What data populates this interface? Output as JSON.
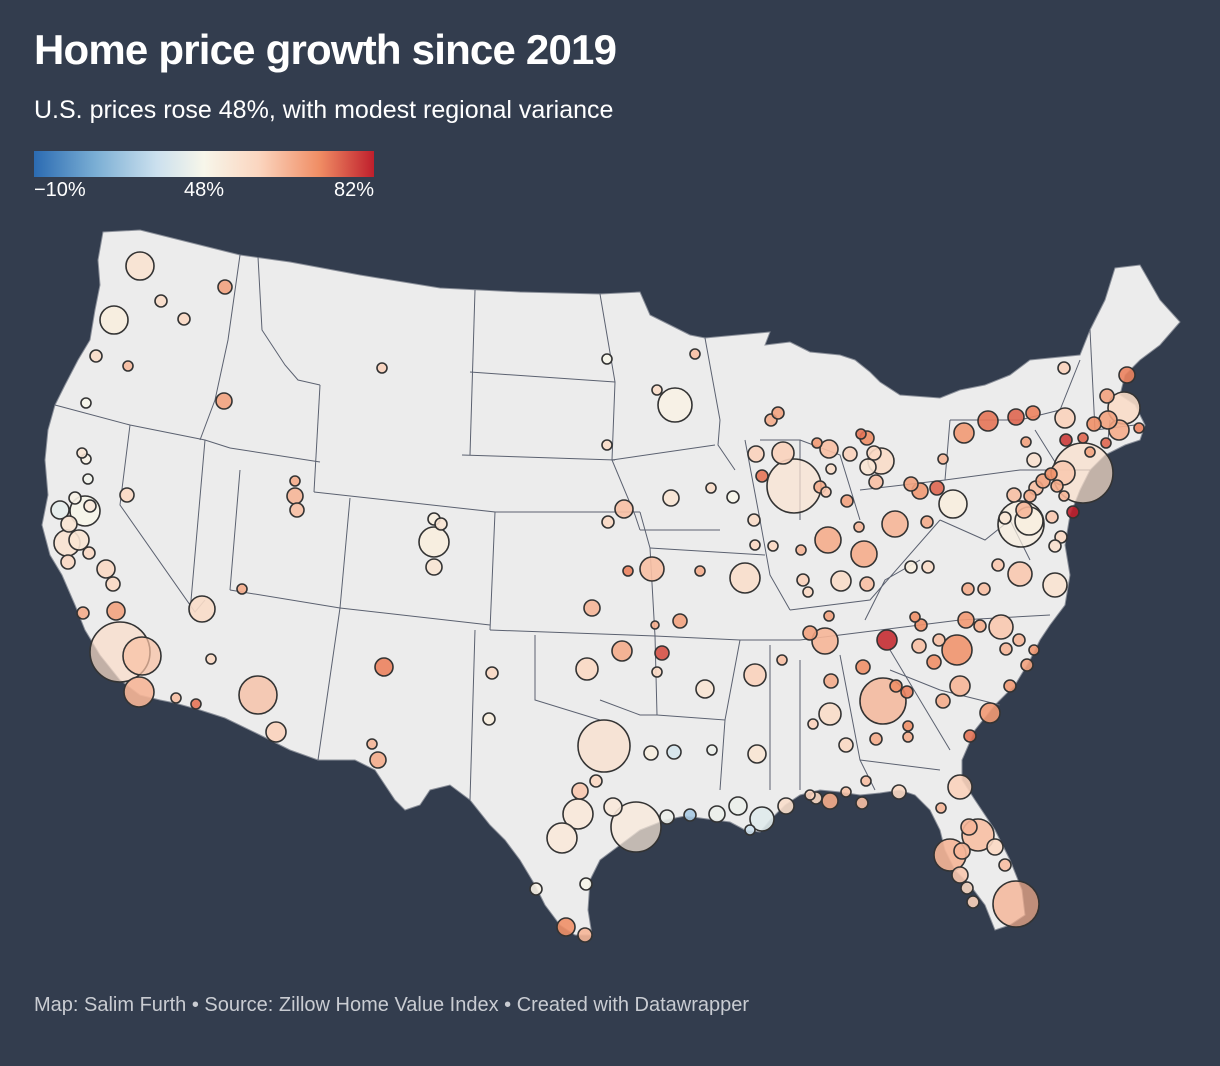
{
  "header": {
    "title": "Home price growth since 2019",
    "subtitle": "U.S. prices rose 48%, with modest regional variance"
  },
  "legend": {
    "min_label": "−10%",
    "mid_label": "48%",
    "max_label": "82%",
    "min_value": -10,
    "mid_value": 48,
    "max_value": 82,
    "colors": [
      "#2b6bb2",
      "#7aaed4",
      "#cbe0ee",
      "#f7f6ea",
      "#fbd6c0",
      "#f08d64",
      "#bf1f2c"
    ]
  },
  "colors": {
    "background": "#333d4e",
    "land": "#ececec",
    "state_border": "#5b6170",
    "bubble_stroke": "#333333"
  },
  "footer": {
    "text": "Map: Salim Furth • Source: Zillow Home Value Index • Created with Datawrapper"
  }
}
